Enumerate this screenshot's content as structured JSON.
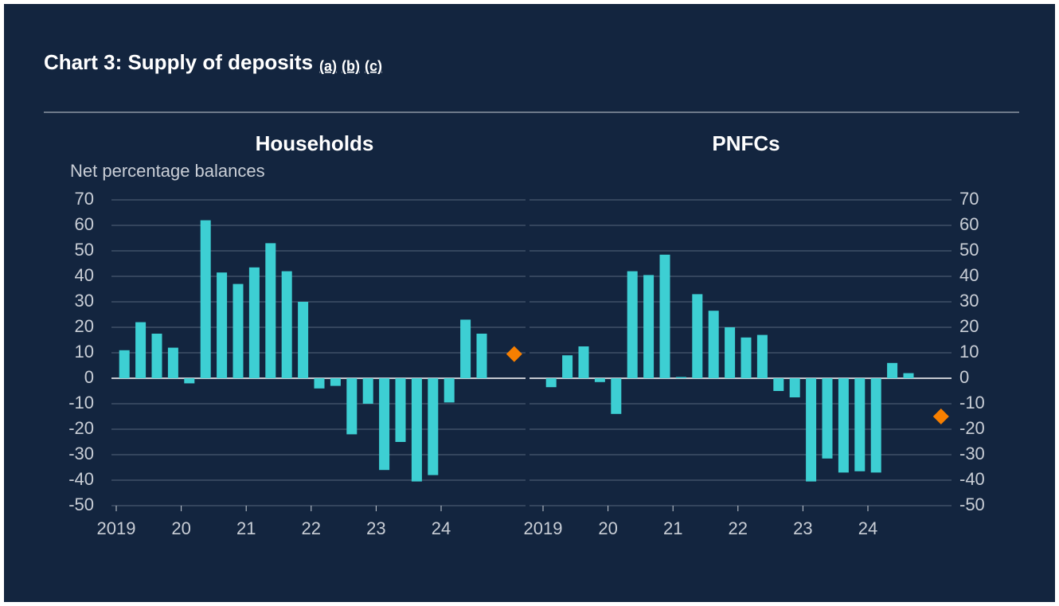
{
  "header": {
    "title": "Chart 3: Supply of deposits",
    "notes": [
      "(a)",
      "(b)",
      "(c)"
    ]
  },
  "chart_data": [
    {
      "type": "bar",
      "title": "Households",
      "ylabel": "Net percentage balances",
      "yaxis_side": "left",
      "categories": [
        "2019",
        null,
        null,
        null,
        "20",
        null,
        null,
        null,
        "21",
        null,
        null,
        null,
        "22",
        null,
        null,
        null,
        "23",
        null,
        null,
        null,
        "24",
        null,
        null,
        null,
        null
      ],
      "ylim": [
        -50,
        70
      ],
      "yticks": [
        -50,
        -40,
        -30,
        -20,
        -10,
        0,
        10,
        20,
        30,
        40,
        50,
        60,
        70
      ],
      "grid": true,
      "series": [
        {
          "type": "bar",
          "color": "#3dcfd3",
          "values": [
            11,
            22,
            17.5,
            12,
            -2,
            62,
            41.5,
            37,
            43.5,
            53,
            42,
            30,
            -4,
            -3,
            -22,
            -10,
            -36,
            -25,
            -40.5,
            -38,
            -9.5,
            23,
            17.5,
            null,
            null
          ]
        },
        {
          "type": "scatter",
          "marker": "diamond",
          "color": "#f77f00",
          "values": [
            null,
            null,
            null,
            null,
            null,
            null,
            null,
            null,
            null,
            null,
            null,
            null,
            null,
            null,
            null,
            null,
            null,
            null,
            null,
            null,
            null,
            null,
            null,
            null,
            9.5
          ]
        }
      ]
    },
    {
      "type": "bar",
      "title": "PNFCs",
      "yaxis_side": "right",
      "categories": [
        "2019",
        null,
        null,
        null,
        "20",
        null,
        null,
        null,
        "21",
        null,
        null,
        null,
        "22",
        null,
        null,
        null,
        "23",
        null,
        null,
        null,
        "24",
        null,
        null,
        null,
        null
      ],
      "ylim": [
        -50,
        70
      ],
      "yticks": [
        -50,
        -40,
        -30,
        -20,
        -10,
        0,
        10,
        20,
        30,
        40,
        50,
        60,
        70
      ],
      "grid": true,
      "series": [
        {
          "type": "bar",
          "color": "#3dcfd3",
          "values": [
            -3.5,
            9,
            12.5,
            -1.5,
            -14,
            42,
            40.5,
            48.5,
            0.5,
            33,
            26.5,
            20,
            16,
            17,
            -5,
            -7.5,
            -40.5,
            -31.5,
            -37,
            -36.5,
            -37,
            6,
            2,
            null,
            null
          ]
        },
        {
          "type": "scatter",
          "marker": "diamond",
          "color": "#f77f00",
          "values": [
            null,
            null,
            null,
            null,
            null,
            null,
            null,
            null,
            null,
            null,
            null,
            null,
            null,
            null,
            null,
            null,
            null,
            null,
            null,
            null,
            null,
            null,
            null,
            null,
            -15
          ]
        }
      ]
    }
  ]
}
